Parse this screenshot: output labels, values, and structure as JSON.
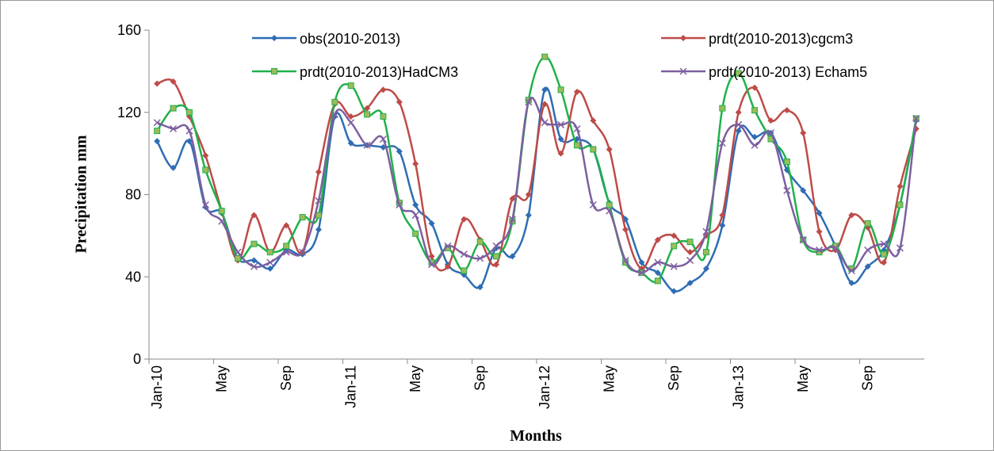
{
  "chart_data": {
    "type": "line",
    "y_label": "Precipitation mm",
    "x_label": "Months",
    "categories": [
      "Jan-10",
      null,
      null,
      null,
      "May",
      null,
      null,
      null,
      "Sep",
      null,
      null,
      null,
      "Jan-11",
      null,
      null,
      null,
      "May",
      null,
      null,
      null,
      "Sep",
      null,
      null,
      null,
      "Jan-12",
      null,
      null,
      null,
      "May",
      null,
      null,
      null,
      "Sep",
      null,
      null,
      null,
      "Jan-13",
      null,
      null,
      null,
      "May",
      null,
      null,
      null,
      "Sep",
      null,
      null,
      null
    ],
    "ylim": [
      0,
      160
    ],
    "yticks": [
      0,
      40,
      80,
      120,
      160
    ],
    "series": [
      {
        "name": "obs(2010-2013)",
        "color": "#2e6db4",
        "marker": "diamond",
        "values": [
          106,
          93,
          106,
          74,
          71,
          49,
          48,
          44,
          53,
          51,
          63,
          118,
          105,
          104,
          103,
          101,
          75,
          66,
          46,
          41,
          35,
          54,
          50,
          70,
          131,
          107,
          107,
          102,
          76,
          68,
          47,
          42,
          33,
          37,
          44,
          65,
          111,
          108,
          110,
          92,
          82,
          71,
          55,
          37,
          45,
          53,
          75,
          116
        ]
      },
      {
        "name": "prdt(2010-2013)cgcm3",
        "color": "#be4b48",
        "marker": "diamond",
        "values": [
          134,
          135,
          118,
          99,
          72,
          48,
          70,
          52,
          65,
          52,
          91,
          124,
          118,
          122,
          131,
          125,
          95,
          50,
          45,
          68,
          58,
          46,
          78,
          80,
          124,
          100,
          130,
          116,
          102,
          63,
          44,
          58,
          60,
          52,
          60,
          70,
          120,
          132,
          116,
          121,
          110,
          62,
          53,
          70,
          64,
          47,
          84,
          112
        ]
      },
      {
        "name": "prdt(2010-2013)HadCM3",
        "color": "#1fb14a",
        "marker": "square",
        "values": [
          111,
          122,
          120,
          92,
          72,
          49,
          56,
          52,
          55,
          69,
          70,
          125,
          133,
          119,
          118,
          76,
          61,
          47,
          54,
          43,
          57,
          50,
          67,
          126,
          147,
          131,
          104,
          102,
          75,
          47,
          42,
          38,
          55,
          57,
          52,
          122,
          139,
          121,
          107,
          96,
          58,
          52,
          55,
          44,
          66,
          51,
          75,
          117
        ]
      },
      {
        "name": "prdt(2010-2013) Echam5",
        "color": "#7d5fa0",
        "marker": "x",
        "values": [
          115,
          112,
          111,
          75,
          67,
          52,
          45,
          47,
          52,
          52,
          77,
          119,
          115,
          104,
          107,
          75,
          70,
          46,
          55,
          51,
          49,
          55,
          68,
          125,
          115,
          114,
          112,
          75,
          72,
          48,
          42,
          47,
          45,
          48,
          62,
          105,
          114,
          104,
          110,
          82,
          58,
          53,
          54,
          43,
          53,
          56,
          54,
          117
        ]
      }
    ]
  }
}
